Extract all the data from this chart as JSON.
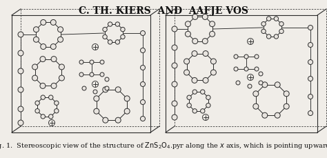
{
  "title": "C. TH. KIERS  AND  AAFJE VOS",
  "bg_color": "#f0ede8",
  "title_fontsize": 10.0,
  "caption_fontsize": 7.0,
  "box_color": "#2a2a2a",
  "figure_width": 4.74,
  "figure_height": 2.29
}
